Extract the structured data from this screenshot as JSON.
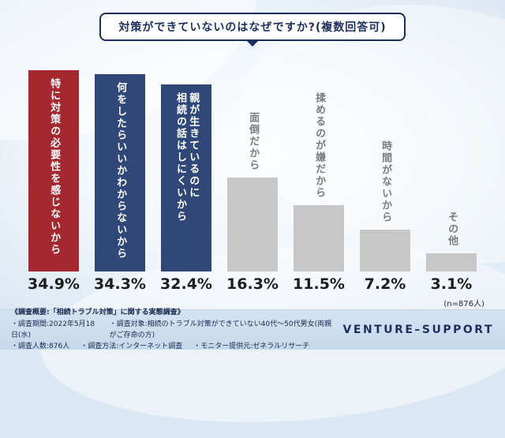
{
  "title": "対策ができていないのはなぜですか?(複数回答可)",
  "chart_data": {
    "type": "bar",
    "title": "対策ができていないのはなぜですか?(複数回答可)",
    "categories": [
      "特に対策の必要性を感じないから",
      "何をしたらいいかわからないから",
      "親が生きているのに\n相続の話はしにくいから",
      "面倒だから",
      "揉めるのが嫌だから",
      "時間がないから",
      "その他"
    ],
    "values": [
      34.9,
      34.3,
      32.4,
      16.3,
      11.5,
      7.2,
      3.1
    ],
    "value_labels": [
      "34.9%",
      "34.3%",
      "32.4%",
      "16.3%",
      "11.5%",
      "7.2%",
      "3.1%"
    ],
    "bar_colors": [
      "#a5282f",
      "#2f4878",
      "#2f4878",
      "#c7c7c7",
      "#c7c7c7",
      "#c7c7c7",
      "#c7c7c7"
    ],
    "label_inside": [
      true,
      true,
      true,
      false,
      false,
      false,
      false
    ],
    "ylim": [
      0,
      40
    ],
    "grid": false,
    "legend": "none",
    "sample_note": "(n=876人)"
  },
  "footer": {
    "heading": "《調査概要:「相続トラブル対策」に関する実態調査》",
    "row2": [
      "・調査期間:2022年5月18日(水)",
      "・調査対象:相続のトラブル対策ができていない40代〜50代男女(両親がご存命の方)"
    ],
    "row3": [
      "・調査人数:876人",
      "・調査方法:インターネット調査",
      "・モニター提供元:ゼネラルリサーチ"
    ],
    "logo": "VENTURE–SUPPORT"
  }
}
